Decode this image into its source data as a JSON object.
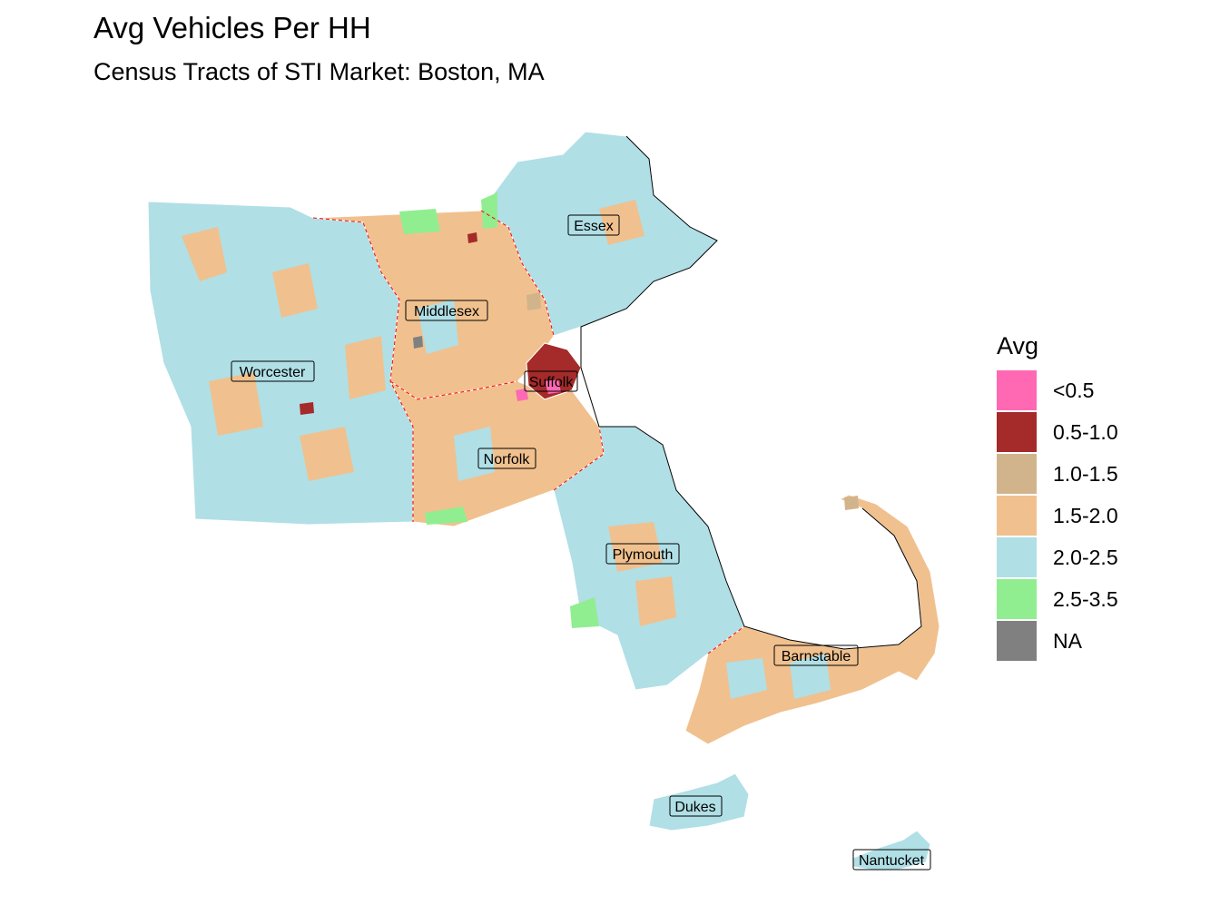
{
  "title": "Avg Vehicles Per HH",
  "subtitle": "Census Tracts of STI Market: Boston, MA",
  "legend": {
    "title": "Avg",
    "items": [
      {
        "label": "<0.5",
        "color": "#ff69b4"
      },
      {
        "label": "0.5-1.0",
        "color": "#a52a2a"
      },
      {
        "label": "1.0-1.5",
        "color": "#d2b48c"
      },
      {
        "label": "1.5-2.0",
        "color": "#f0c18e"
      },
      {
        "label": "2.0-2.5",
        "color": "#b0dfe6"
      },
      {
        "label": "2.5-3.5",
        "color": "#90ee90"
      },
      {
        "label": "NA",
        "color": "#808080"
      }
    ]
  },
  "counties": [
    "Essex",
    "Middlesex",
    "Worcester",
    "Suffolk",
    "Norfolk",
    "Plymouth",
    "Barnstable",
    "Dukes",
    "Nantucket"
  ]
}
